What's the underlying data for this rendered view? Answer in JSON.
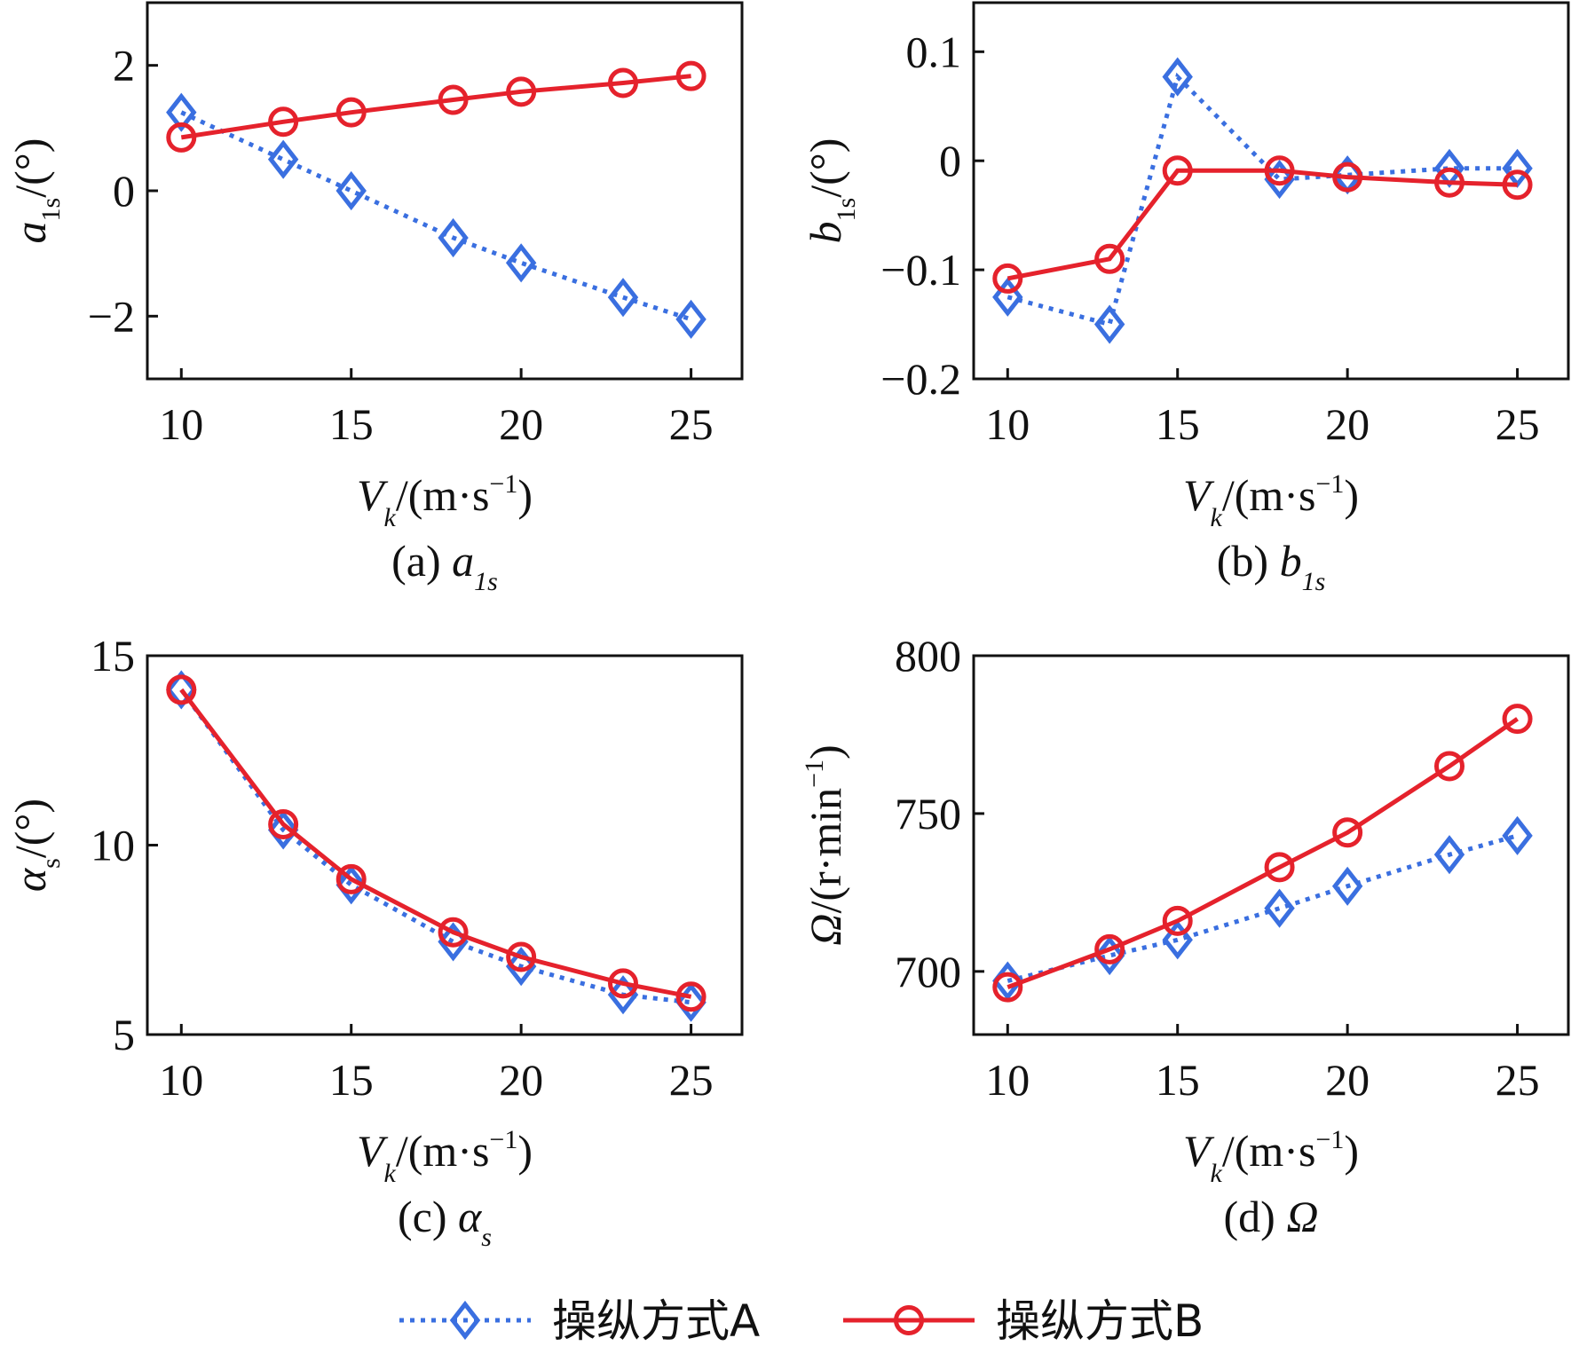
{
  "legend": {
    "series": [
      {
        "name": "操纵方式A",
        "color": "#3a6fe0",
        "marker": "diamond",
        "style": "dotted"
      },
      {
        "name": "操纵方式B",
        "color": "#e5222c",
        "marker": "circle",
        "style": "solid"
      }
    ]
  },
  "chart_data": [
    {
      "id": "a1s",
      "type": "line",
      "caption_prefix": "(a)",
      "caption_symbol": "a",
      "caption_sub": "1s",
      "xlabel": {
        "symbol": "V",
        "sub": "k",
        "unit": "/(m·s",
        "sup": "−1",
        "close": ")"
      },
      "ylabel": {
        "symbol": "a",
        "sub": "1s",
        "unit": "/(°)"
      },
      "x": [
        10,
        13,
        15,
        18,
        20,
        23,
        25
      ],
      "xlim": [
        9,
        26.5
      ],
      "ylim": [
        -3,
        3
      ],
      "xticks": [
        10,
        15,
        20,
        25
      ],
      "yticks": [
        -2,
        0,
        2
      ],
      "ytick_labels": [
        "−2",
        "0",
        "2"
      ],
      "series": [
        {
          "name": "操纵方式A",
          "values": [
            1.25,
            0.5,
            0.0,
            -0.75,
            -1.15,
            -1.7,
            -2.05
          ]
        },
        {
          "name": "操纵方式B",
          "values": [
            0.85,
            1.1,
            1.25,
            1.45,
            1.58,
            1.72,
            1.83
          ]
        }
      ]
    },
    {
      "id": "b1s",
      "type": "line",
      "caption_prefix": "(b)",
      "caption_symbol": "b",
      "caption_sub": "1s",
      "xlabel": {
        "symbol": "V",
        "sub": "k",
        "unit": "/(m·s",
        "sup": "−1",
        "close": ")"
      },
      "ylabel": {
        "symbol": "b",
        "sub": "1s",
        "unit": "/(°)"
      },
      "x": [
        10,
        13,
        15,
        18,
        20,
        23,
        25
      ],
      "xlim": [
        9,
        26.5
      ],
      "ylim": [
        -0.2,
        0.145
      ],
      "xticks": [
        10,
        15,
        20,
        25
      ],
      "yticks": [
        -0.2,
        -0.1,
        0,
        0.1
      ],
      "ytick_labels": [
        "−0.2",
        "−0.1",
        "0",
        "0.1"
      ],
      "series": [
        {
          "name": "操纵方式A",
          "values": [
            -0.125,
            -0.15,
            0.077,
            -0.017,
            -0.013,
            -0.007,
            -0.007
          ]
        },
        {
          "name": "操纵方式B",
          "values": [
            -0.108,
            -0.09,
            -0.009,
            -0.009,
            -0.015,
            -0.02,
            -0.022
          ]
        }
      ]
    },
    {
      "id": "alpha_s",
      "type": "line",
      "caption_prefix": "(c)",
      "caption_symbol": "α",
      "caption_sub": "s",
      "xlabel": {
        "symbol": "V",
        "sub": "k",
        "unit": "/(m·s",
        "sup": "−1",
        "close": ")"
      },
      "ylabel": {
        "symbol": "α",
        "sub": "s",
        "unit": "/(°)"
      },
      "x": [
        10,
        13,
        15,
        18,
        20,
        23,
        25
      ],
      "xlim": [
        9,
        26.5
      ],
      "ylim": [
        5,
        15
      ],
      "xticks": [
        10,
        15,
        20,
        25
      ],
      "yticks": [
        5,
        10,
        15
      ],
      "ytick_labels": [
        "5",
        "10",
        "15"
      ],
      "series": [
        {
          "name": "操纵方式A",
          "values": [
            14.1,
            10.4,
            8.95,
            7.45,
            6.8,
            6.05,
            5.85
          ]
        },
        {
          "name": "操纵方式B",
          "values": [
            14.1,
            10.55,
            9.1,
            7.7,
            7.05,
            6.35,
            6.0
          ]
        }
      ]
    },
    {
      "id": "omega",
      "type": "line",
      "caption_prefix": "(d)",
      "caption_symbol": "Ω",
      "caption_sub": "",
      "xlabel": {
        "symbol": "V",
        "sub": "k",
        "unit": "/(m·s",
        "sup": "−1",
        "close": ")"
      },
      "ylabel": {
        "symbol": "Ω",
        "sub": "",
        "unit": "/(r·min",
        "sup": "−1",
        "close": ")"
      },
      "x": [
        10,
        13,
        15,
        18,
        20,
        23,
        25
      ],
      "xlim": [
        9,
        26.5
      ],
      "ylim": [
        680,
        800
      ],
      "xticks": [
        10,
        15,
        20,
        25
      ],
      "yticks": [
        700,
        750,
        800
      ],
      "ytick_labels": [
        "700",
        "750",
        "800"
      ],
      "series": [
        {
          "name": "操纵方式A",
          "values": [
            697,
            705,
            710,
            720,
            727,
            737,
            743
          ]
        },
        {
          "name": "操纵方式B",
          "values": [
            695,
            707,
            716,
            733,
            744,
            765,
            780
          ]
        }
      ]
    }
  ]
}
